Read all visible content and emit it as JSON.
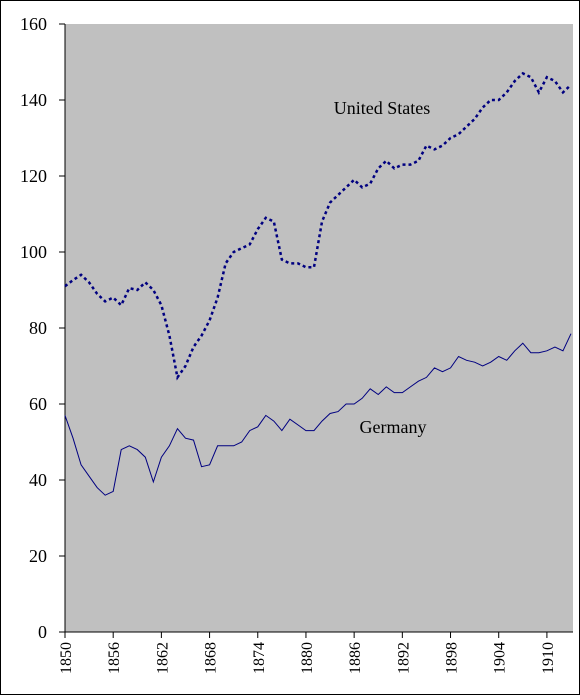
{
  "chart_data": {
    "type": "line",
    "x": [
      1850,
      1851,
      1852,
      1853,
      1854,
      1855,
      1856,
      1857,
      1858,
      1859,
      1860,
      1861,
      1862,
      1863,
      1864,
      1865,
      1866,
      1867,
      1868,
      1869,
      1870,
      1871,
      1872,
      1873,
      1874,
      1875,
      1876,
      1877,
      1878,
      1879,
      1880,
      1881,
      1882,
      1883,
      1884,
      1885,
      1886,
      1887,
      1888,
      1889,
      1890,
      1891,
      1892,
      1893,
      1894,
      1895,
      1896,
      1897,
      1898,
      1899,
      1900,
      1901,
      1902,
      1903,
      1904,
      1905,
      1906,
      1907,
      1908,
      1909,
      1910,
      1911,
      1912,
      1913
    ],
    "series": [
      {
        "name": "United States",
        "color": "#000080",
        "style": "dotted",
        "values": [
          91,
          92.6,
          94,
          92,
          89,
          87,
          88,
          86,
          90.5,
          90,
          92,
          90,
          86,
          78,
          67,
          70,
          75,
          78,
          82,
          88,
          97,
          100,
          101,
          102,
          106,
          109,
          108,
          98,
          97,
          97,
          96,
          96,
          108,
          113,
          115,
          117,
          119,
          117,
          118,
          122,
          124,
          122,
          123,
          123,
          124,
          128,
          127,
          128,
          130,
          131,
          133,
          135,
          138,
          140,
          140,
          142,
          145,
          147,
          146,
          142,
          146,
          145,
          142,
          144
        ]
      },
      {
        "name": "Germany",
        "color": "#000080",
        "style": "solid",
        "values": [
          57,
          51,
          44,
          41,
          38,
          36,
          37,
          48,
          49,
          48,
          46,
          39.5,
          46,
          49,
          53.5,
          51,
          50.5,
          43.5,
          44,
          49,
          49,
          49,
          50,
          53,
          54,
          57,
          55.5,
          53,
          56,
          54.5,
          53,
          53,
          55.5,
          57.5,
          58,
          60,
          60,
          61.5,
          64,
          62.5,
          64.5,
          63,
          63,
          64.5,
          66,
          67,
          69.5,
          68.5,
          69.5,
          72.5,
          71.5,
          71,
          70,
          71,
          72.5,
          71.5,
          74,
          76,
          73.5,
          73.5,
          74,
          75,
          74,
          78.5
        ]
      }
    ],
    "xlim": [
      1850,
      1913
    ],
    "xticks": [
      1850,
      1856,
      1862,
      1868,
      1874,
      1880,
      1886,
      1892,
      1898,
      1904,
      1910
    ],
    "ylim": [
      0,
      160
    ],
    "yticks": [
      0,
      20,
      40,
      60,
      80,
      100,
      120,
      140,
      160
    ],
    "plot_background": "#c0c0c0"
  }
}
